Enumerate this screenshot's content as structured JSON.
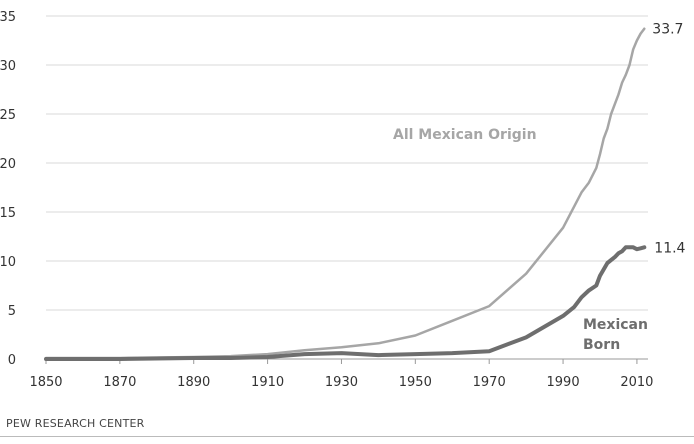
{
  "chart_data": {
    "type": "line",
    "title": "",
    "xlabel": "",
    "ylabel": "",
    "xlim": [
      1850,
      2013
    ],
    "ylim": [
      0,
      35
    ],
    "x_ticks": [
      "1850",
      "1870",
      "1890",
      "1910",
      "1930",
      "1950",
      "1970",
      "1990",
      "2010"
    ],
    "y_ticks": [
      "0",
      "5",
      "10",
      "15",
      "20",
      "25",
      "30",
      "35"
    ],
    "grid": "horizontal",
    "series": [
      {
        "name": "All Mexican Origin",
        "color": "#a6a6a6",
        "end_label": "33.7",
        "points": [
          [
            1850,
            0.1
          ],
          [
            1860,
            0.1
          ],
          [
            1870,
            0.1
          ],
          [
            1880,
            0.15
          ],
          [
            1890,
            0.2
          ],
          [
            1900,
            0.3
          ],
          [
            1910,
            0.5
          ],
          [
            1920,
            0.9
          ],
          [
            1930,
            1.2
          ],
          [
            1940,
            1.6
          ],
          [
            1950,
            2.4
          ],
          [
            1960,
            3.9
          ],
          [
            1970,
            5.4
          ],
          [
            1980,
            8.7
          ],
          [
            1990,
            13.4
          ],
          [
            1995,
            17.0
          ],
          [
            1997,
            18.0
          ],
          [
            1999,
            19.5
          ],
          [
            2000,
            20.9
          ],
          [
            2001,
            22.5
          ],
          [
            2002,
            23.5
          ],
          [
            2003,
            25.0
          ],
          [
            2004,
            26.0
          ],
          [
            2005,
            27.0
          ],
          [
            2006,
            28.2
          ],
          [
            2007,
            29.0
          ],
          [
            2008,
            30.0
          ],
          [
            2009,
            31.6
          ],
          [
            2010,
            32.5
          ],
          [
            2011,
            33.2
          ],
          [
            2012,
            33.7
          ]
        ]
      },
      {
        "name": "Mexican Born",
        "color": "#6e6e6e",
        "end_label": "11.4",
        "points": [
          [
            1850,
            0.0
          ],
          [
            1870,
            0.0
          ],
          [
            1890,
            0.1
          ],
          [
            1900,
            0.1
          ],
          [
            1910,
            0.2
          ],
          [
            1920,
            0.5
          ],
          [
            1930,
            0.6
          ],
          [
            1940,
            0.4
          ],
          [
            1950,
            0.5
          ],
          [
            1960,
            0.6
          ],
          [
            1970,
            0.8
          ],
          [
            1980,
            2.2
          ],
          [
            1990,
            4.4
          ],
          [
            1993,
            5.3
          ],
          [
            1995,
            6.3
          ],
          [
            1997,
            7.0
          ],
          [
            1999,
            7.5
          ],
          [
            2000,
            8.5
          ],
          [
            2002,
            9.8
          ],
          [
            2004,
            10.4
          ],
          [
            2005,
            10.8
          ],
          [
            2006,
            11.0
          ],
          [
            2007,
            11.4
          ],
          [
            2008,
            11.4
          ],
          [
            2009,
            11.4
          ],
          [
            2010,
            11.2
          ],
          [
            2011,
            11.3
          ],
          [
            2012,
            11.4
          ]
        ]
      }
    ],
    "annotations": [
      {
        "text": "All Mexican Origin",
        "color": "#a6a6a6"
      },
      {
        "line1": "Mexican",
        "line2": "Born",
        "color": "#6e6e6e"
      }
    ]
  },
  "source": "PEW RESEARCH CENTER"
}
